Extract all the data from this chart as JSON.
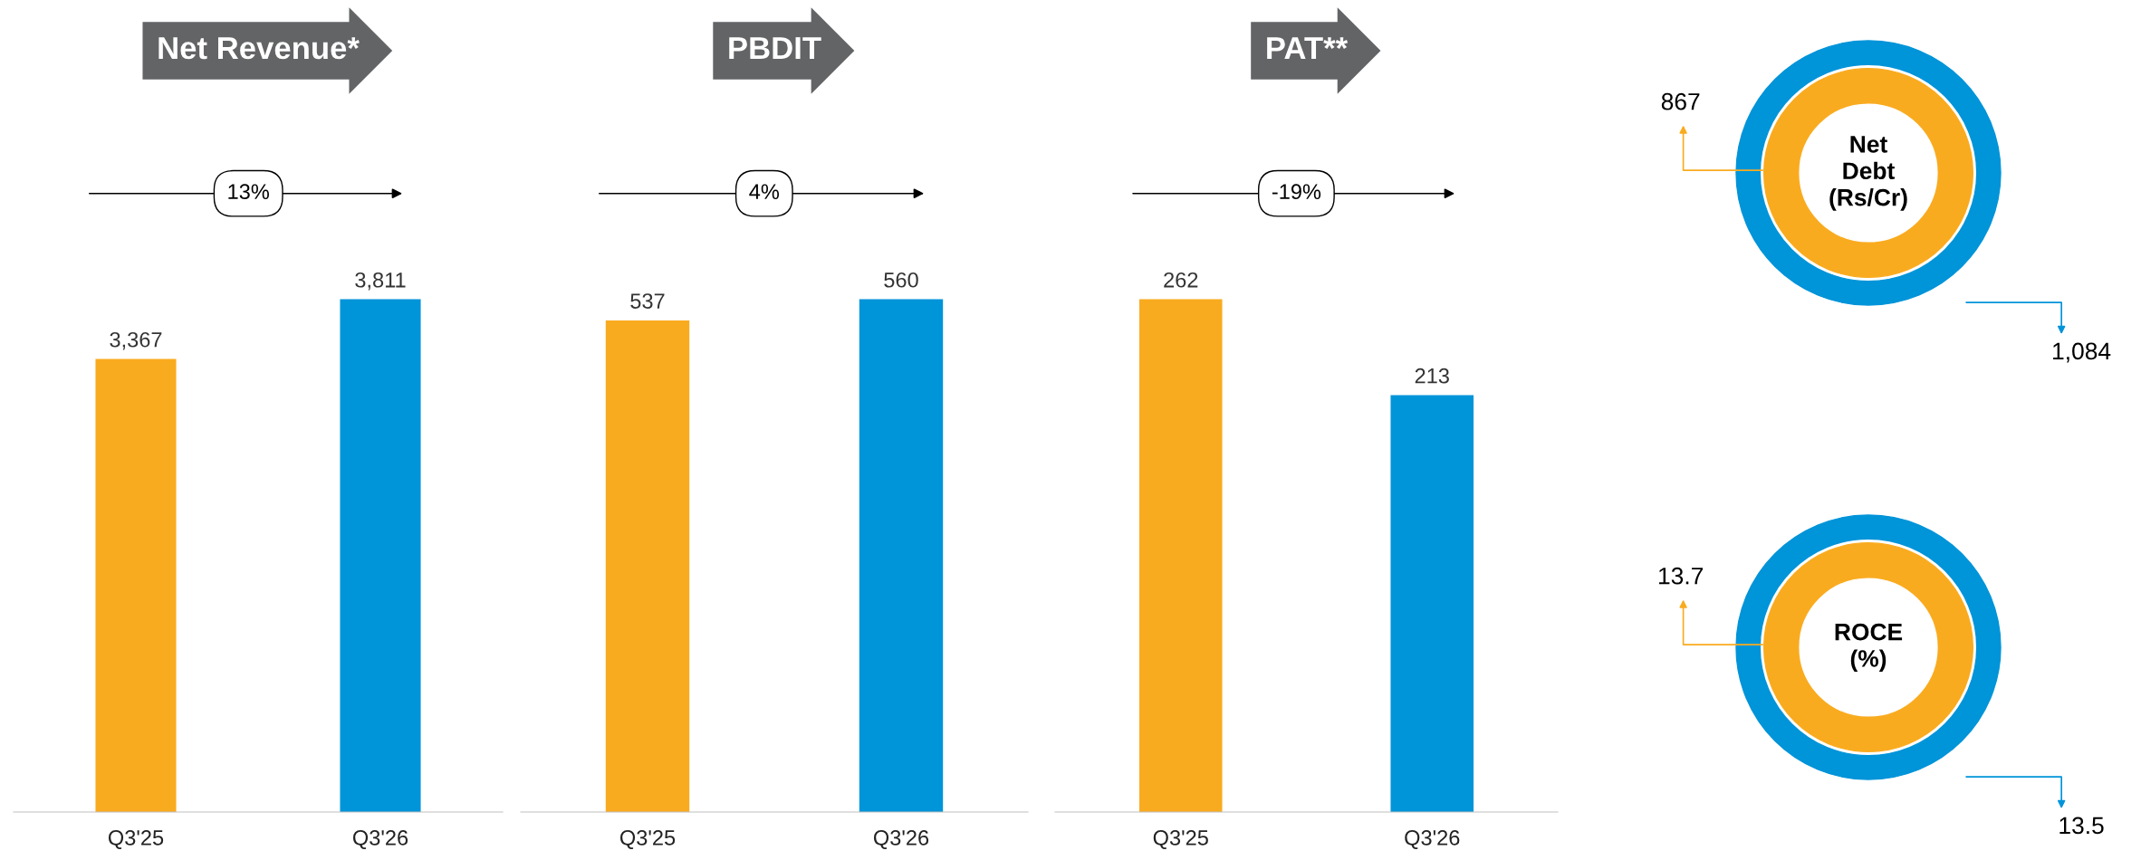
{
  "chart_data": [
    {
      "type": "bar",
      "title": "Net Revenue*",
      "categories": [
        "Q3'25",
        "Q3'26"
      ],
      "values": [
        3367,
        3811
      ],
      "colors": [
        "#f9ab1f",
        "#0094d9"
      ],
      "tick_labels": "x",
      "value_labels": [
        "3,367",
        "3,811"
      ],
      "annotations": [
        "13%"
      ]
    },
    {
      "type": "bar",
      "title": "PBDIT",
      "categories": [
        "Q3'25",
        "Q3'26"
      ],
      "values": [
        537,
        560
      ],
      "colors": [
        "#f9ab1f",
        "#0094d9"
      ],
      "tick_labels": "x",
      "value_labels": [
        "537",
        "560"
      ],
      "annotations": [
        "4%"
      ]
    },
    {
      "type": "bar",
      "title": "PAT**",
      "categories": [
        "Q3'25",
        "Q3'26"
      ],
      "values": [
        262,
        213
      ],
      "colors": [
        "#f9ab1f",
        "#0094d9"
      ],
      "tick_labels": "x",
      "value_labels": [
        "262",
        "213"
      ],
      "annotations": [
        "-19%"
      ]
    },
    {
      "type": "other",
      "title": "Net Debt (Rs/Cr)",
      "values": [
        867,
        1084
      ],
      "colors": [
        "#f9ab1f",
        "#0094d9"
      ],
      "value_labels": [
        "867",
        "1,084"
      ]
    },
    {
      "type": "other",
      "title": "ROCE (%)",
      "values": [
        13.7,
        13.5
      ],
      "colors": [
        "#f9ab1f",
        "#0094d9"
      ],
      "value_labels": [
        "13.7",
        "13.5"
      ]
    }
  ]
}
